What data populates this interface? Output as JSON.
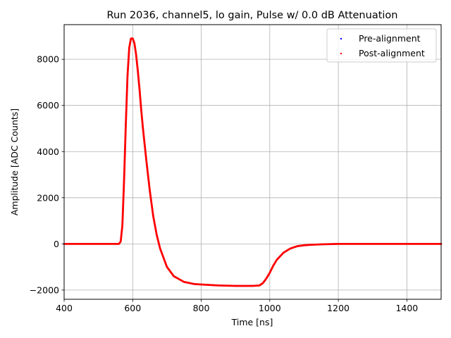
{
  "chart_data": {
    "type": "scatter",
    "title": "Run 2036, channel5, lo gain, Pulse w/ 0.0 dB Attenuation",
    "xlabel": "Time [ns]",
    "ylabel": "Amplitude [ADC Counts]",
    "xlim": [
      400,
      1500
    ],
    "ylim": [
      -2400,
      9500
    ],
    "xticks": [
      400,
      600,
      800,
      1000,
      1200,
      1400
    ],
    "yticks": [
      -2000,
      0,
      2000,
      4000,
      6000,
      8000
    ],
    "xtick_labels": [
      "400",
      "600",
      "800",
      "1000",
      "1200",
      "1400"
    ],
    "ytick_labels": [
      "−2000",
      "0",
      "2000",
      "4000",
      "6000",
      "8000"
    ],
    "grid": true,
    "legend_position": "top-right",
    "series": [
      {
        "name": "Pre-alignment",
        "color": "#0000ff",
        "x": [
          400,
          500,
          560,
          565,
          570,
          575,
          580,
          585,
          590,
          595,
          600,
          605,
          610,
          615,
          620,
          625,
          630,
          640,
          650,
          660,
          670,
          680,
          700,
          720,
          750,
          780,
          800,
          850,
          900,
          950,
          970,
          980,
          990,
          1000,
          1010,
          1020,
          1040,
          1060,
          1080,
          1100,
          1120,
          1150,
          1200,
          1300,
          1400,
          1500
        ],
        "y": [
          0,
          0,
          0,
          100,
          800,
          2800,
          5200,
          7300,
          8500,
          8900,
          8900,
          8700,
          8200,
          7500,
          6700,
          5800,
          5000,
          3600,
          2300,
          1200,
          400,
          -200,
          -1000,
          -1400,
          -1650,
          -1740,
          -1760,
          -1800,
          -1820,
          -1820,
          -1800,
          -1700,
          -1500,
          -1250,
          -950,
          -700,
          -380,
          -200,
          -100,
          -60,
          -40,
          -20,
          0,
          0,
          0,
          0
        ]
      },
      {
        "name": "Post-alignment",
        "color": "#ff0000",
        "x": [
          400,
          500,
          560,
          565,
          570,
          575,
          580,
          585,
          590,
          595,
          600,
          605,
          610,
          615,
          620,
          625,
          630,
          640,
          650,
          660,
          670,
          680,
          700,
          720,
          750,
          780,
          800,
          850,
          900,
          950,
          970,
          980,
          990,
          1000,
          1010,
          1020,
          1040,
          1060,
          1080,
          1100,
          1120,
          1150,
          1200,
          1300,
          1400,
          1500
        ],
        "y": [
          0,
          0,
          0,
          100,
          800,
          2800,
          5200,
          7300,
          8500,
          8900,
          8900,
          8700,
          8200,
          7500,
          6700,
          5800,
          5000,
          3600,
          2300,
          1200,
          400,
          -200,
          -1000,
          -1400,
          -1650,
          -1740,
          -1760,
          -1800,
          -1820,
          -1820,
          -1800,
          -1700,
          -1500,
          -1250,
          -950,
          -700,
          -380,
          -200,
          -100,
          -60,
          -40,
          -20,
          0,
          0,
          0,
          0
        ]
      }
    ]
  }
}
